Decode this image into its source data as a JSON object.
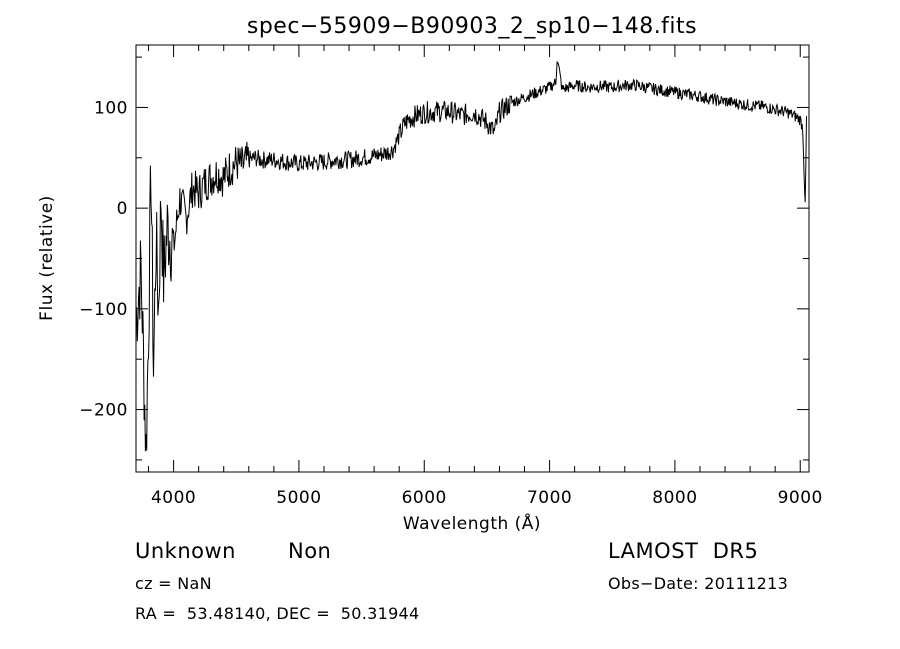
{
  "chart_data": {
    "type": "line",
    "title": "spec−55909−B90903_2_sp10−148.fits",
    "xlabel": "Wavelength (Å)",
    "ylabel": "Flux (relative)",
    "xlim": [
      3700,
      9070
    ],
    "ylim": [
      -262,
      162
    ],
    "x_ticks": [
      4000,
      5000,
      6000,
      7000,
      8000,
      9000
    ],
    "y_ticks": [
      -200,
      -100,
      0,
      100
    ],
    "x_tick_labels": [
      "4000",
      "5000",
      "6000",
      "7000",
      "8000",
      "9000"
    ],
    "y_tick_labels": [
      "−200",
      "−100",
      "0",
      "100"
    ],
    "grid": false,
    "series": [
      {
        "color": "#000000",
        "x": [
          3700,
          3740,
          3760,
          3780,
          3800,
          3820,
          3840,
          3860,
          3880,
          3900,
          3920,
          3950,
          4000,
          4050,
          4100,
          4150,
          4200,
          4250,
          4300,
          4350,
          4400,
          4450,
          4500,
          4550,
          4600,
          4650,
          4700,
          4800,
          4900,
          5000,
          5100,
          5200,
          5300,
          5400,
          5500,
          5600,
          5700,
          5750,
          5800,
          5850,
          5900,
          6000,
          6100,
          6200,
          6300,
          6400,
          6500,
          6560,
          6600,
          6700,
          6800,
          6900,
          7000,
          7050,
          7060,
          7100,
          7200,
          7300,
          7400,
          7500,
          7600,
          7700,
          7800,
          7900,
          8000,
          8100,
          8200,
          8300,
          8400,
          8500,
          8600,
          8700,
          8800,
          8900,
          8950,
          9000,
          9020,
          9040,
          9050
        ],
        "y": [
          -110,
          -60,
          -150,
          -240,
          -120,
          40,
          -160,
          -30,
          -100,
          10,
          -70,
          -20,
          -40,
          10,
          -10,
          20,
          15,
          25,
          30,
          35,
          30,
          40,
          45,
          42,
          48,
          50,
          48,
          48,
          46,
          44,
          45,
          46,
          48,
          48,
          50,
          52,
          55,
          58,
          72,
          85,
          90,
          95,
          96,
          96,
          92,
          95,
          85,
          75,
          95,
          105,
          110,
          115,
          120,
          125,
          150,
          118,
          122,
          120,
          121,
          120,
          122,
          122,
          119,
          117,
          115,
          113,
          111,
          108,
          106,
          104,
          102,
          101,
          98,
          95,
          92,
          88,
          80,
          0,
          90
        ]
      }
    ]
  },
  "info": {
    "object_class": "Unknown",
    "subclass": "Non",
    "survey": "LAMOST  DR5",
    "cz": "cz = NaN",
    "obs_date": "Obs−Date: 20111213",
    "coords": "RA =  53.48140, DEC =  50.31944"
  }
}
